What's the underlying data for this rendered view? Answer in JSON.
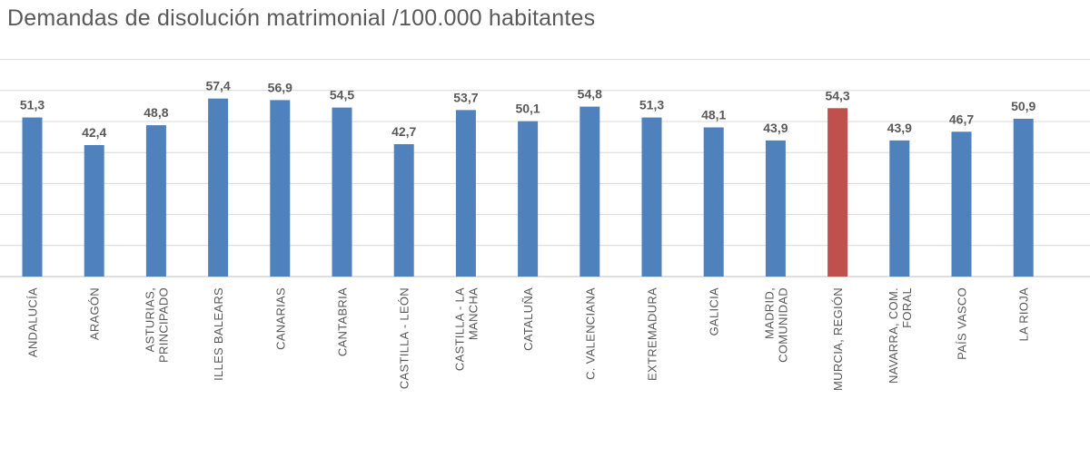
{
  "chart_data": {
    "type": "bar",
    "title": "Demandas de disolución matrimonial /100.000 habitantes",
    "categories": [
      "ANDALUCÍA",
      "ARAGÓN",
      "ASTURIAS, PRINCIPADO",
      "ILLES BALEARS",
      "CANARIAS",
      "CANTABRIA",
      "CASTILLA - LEÓN",
      "CASTILLA - LA MANCHA",
      "CATALUÑA",
      "C. VALENCIANA",
      "EXTREMADURA",
      "GALICIA",
      "MADRID, COMUNIDAD",
      "MURCIA, REGIÓN",
      "NAVARRA, COM. FORAL",
      "PAÍS VASCO",
      "LA RIOJA"
    ],
    "category_lines": [
      [
        "ANDALUCÍA"
      ],
      [
        "ARAGÓN"
      ],
      [
        "ASTURIAS,",
        "PRINCIPADO"
      ],
      [
        "ILLES BALEARS"
      ],
      [
        "CANARIAS"
      ],
      [
        "CANTABRIA"
      ],
      [
        "CASTILLA - LEÓN"
      ],
      [
        "CASTILLA - LA",
        "MANCHA"
      ],
      [
        "CATALUÑA"
      ],
      [
        "C. VALENCIANA"
      ],
      [
        "EXTREMADURA"
      ],
      [
        "GALICIA"
      ],
      [
        "MADRID,",
        "COMUNIDAD"
      ],
      [
        "MURCIA, REGIÓN"
      ],
      [
        "NAVARRA, COM.",
        "FORAL"
      ],
      [
        "PAÍS VASCO"
      ],
      [
        "LA RIOJA"
      ]
    ],
    "values": [
      51.3,
      42.4,
      48.8,
      57.4,
      56.9,
      54.5,
      42.7,
      53.7,
      50.1,
      54.8,
      51.3,
      48.1,
      43.9,
      54.3,
      43.9,
      46.7,
      50.9
    ],
    "value_labels": [
      "51,3",
      "42,4",
      "48,8",
      "57,4",
      "56,9",
      "54,5",
      "42,7",
      "53,7",
      "50,1",
      "54,8",
      "51,3",
      "48,1",
      "43,9",
      "54,3",
      "43,9",
      "46,7",
      "50,9"
    ],
    "ylim": [
      0,
      70
    ],
    "grid": true,
    "highlight_index": 13,
    "colors": {
      "bar": "#4f81bd",
      "highlight": "#c0504d",
      "grid": "#d9d9d9",
      "text": "#595959"
    }
  }
}
